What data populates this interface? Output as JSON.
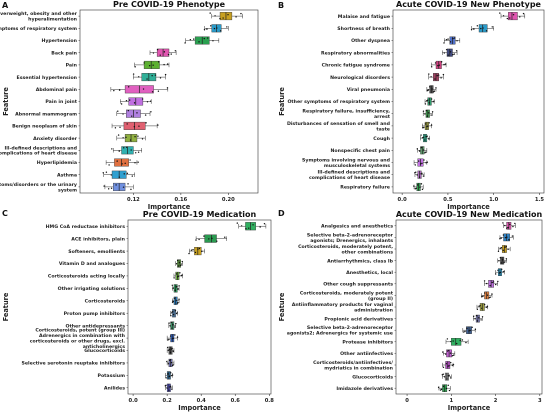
{
  "figure": {
    "ylabel": "Feature",
    "xlabel": "Importance"
  },
  "chart_data": [
    {
      "panel": "A",
      "type": "boxplot",
      "title": "Pre COVID-19 Phenotype",
      "xlabel": "Importance",
      "ylabel": "Feature",
      "xlim": [
        0.075,
        0.225
      ],
      "xticks": [
        0.12,
        0.16,
        0.2
      ],
      "tick_labels": [
        "0.12",
        "0.16",
        "0.20"
      ],
      "categories": [
        [
          "Overweight, obesity and other",
          "hyperalimentation"
        ],
        [
          "Other symptoms of respiratory system"
        ],
        [
          "Hypertension"
        ],
        [
          "Back pain"
        ],
        [
          "Pain"
        ],
        [
          "Essential hypertension"
        ],
        [
          "Abdominal pain"
        ],
        [
          "Pain in joint"
        ],
        [
          "Abnormal mammogram"
        ],
        [
          "Benign neoplasm of skin"
        ],
        [
          "Anxiety disorder"
        ],
        [
          "Ill-defined descriptions and",
          "complications of heart disease"
        ],
        [
          "Hyperlipidemia"
        ],
        [
          "Asthma"
        ],
        [
          "Other symptoms/disorders or the urinary",
          "system"
        ]
      ],
      "values": [
        0.198,
        0.19,
        0.178,
        0.145,
        0.135,
        0.133,
        0.125,
        0.122,
        0.12,
        0.121,
        0.118,
        0.115,
        0.11,
        0.108,
        0.108
      ],
      "iqr": [
        [
          0.193,
          0.203
        ],
        [
          0.186,
          0.194
        ],
        [
          0.172,
          0.184
        ],
        [
          0.14,
          0.15
        ],
        [
          0.129,
          0.142
        ],
        [
          0.127,
          0.139
        ],
        [
          0.113,
          0.137
        ],
        [
          0.116,
          0.128
        ],
        [
          0.114,
          0.126
        ],
        [
          0.112,
          0.13
        ],
        [
          0.113,
          0.123
        ],
        [
          0.11,
          0.12
        ],
        [
          0.104,
          0.116
        ],
        [
          0.102,
          0.114
        ],
        [
          0.103,
          0.113
        ]
      ],
      "whiskers": [
        [
          0.186,
          0.212
        ],
        [
          0.18,
          0.2
        ],
        [
          0.164,
          0.192
        ],
        [
          0.134,
          0.156
        ],
        [
          0.121,
          0.15
        ],
        [
          0.12,
          0.147
        ],
        [
          0.101,
          0.149
        ],
        [
          0.109,
          0.135
        ],
        [
          0.106,
          0.134
        ],
        [
          0.102,
          0.14
        ],
        [
          0.106,
          0.13
        ],
        [
          0.103,
          0.127
        ],
        [
          0.097,
          0.123
        ],
        [
          0.095,
          0.121
        ],
        [
          0.096,
          0.12
        ]
      ],
      "colors": [
        "#c8a020",
        "#2a9ac8",
        "#2aa050",
        "#e055b0",
        "#5cb030",
        "#30b098",
        "#e060c0",
        "#c070e0",
        "#b080e0",
        "#e06070",
        "#90b040",
        "#30b0b0",
        "#e07040",
        "#30a0d0",
        "#7090e0"
      ]
    },
    {
      "panel": "B",
      "type": "boxplot",
      "title": "Acute COVID-19 New Phenotype",
      "xlabel": "Importance",
      "ylabel": "Feature",
      "xlim": [
        -0.1,
        1.55
      ],
      "xticks": [
        0.0,
        0.5,
        1.0,
        1.5
      ],
      "tick_labels": [
        "0.0",
        "0.5",
        "1.0",
        "1.5"
      ],
      "categories": [
        [
          "Malaise and fatigue"
        ],
        [
          "Shortness of breath"
        ],
        [
          "Other dyspnea"
        ],
        [
          "Respiratory abnormalities"
        ],
        [
          "Chronic fatigue syndrome"
        ],
        [
          "Neurological disorders"
        ],
        [
          "Viral pneumonia"
        ],
        [
          "Other symptoms of respiratory system"
        ],
        [
          "Respiratory failure, insufficiency,",
          "arrest"
        ],
        [
          "Disturbances of sensation of smell and",
          "taste"
        ],
        [
          "Cough"
        ],
        [
          "Nonspecific chest pain"
        ],
        [
          "Symptoms involving nervous and",
          "musculoskeletal systems"
        ],
        [
          "Ill-defined descriptions and",
          "complications of heart disease"
        ],
        [
          "Respiratory failure"
        ]
      ],
      "values": [
        1.2,
        0.88,
        0.55,
        0.52,
        0.4,
        0.37,
        0.32,
        0.3,
        0.28,
        0.27,
        0.25,
        0.22,
        0.2,
        0.19,
        0.18
      ],
      "iqr": [
        [
          1.16,
          1.26
        ],
        [
          0.84,
          0.93
        ],
        [
          0.52,
          0.58
        ],
        [
          0.49,
          0.55
        ],
        [
          0.37,
          0.43
        ],
        [
          0.34,
          0.4
        ],
        [
          0.3,
          0.34
        ],
        [
          0.28,
          0.32
        ],
        [
          0.26,
          0.3
        ],
        [
          0.25,
          0.29
        ],
        [
          0.23,
          0.27
        ],
        [
          0.2,
          0.24
        ],
        [
          0.17,
          0.23
        ],
        [
          0.17,
          0.21
        ],
        [
          0.16,
          0.2
        ]
      ],
      "whiskers": [
        [
          1.08,
          1.34
        ],
        [
          0.76,
          1.0
        ],
        [
          0.46,
          0.63
        ],
        [
          0.44,
          0.6
        ],
        [
          0.32,
          0.48
        ],
        [
          0.29,
          0.45
        ],
        [
          0.27,
          0.37
        ],
        [
          0.25,
          0.35
        ],
        [
          0.23,
          0.33
        ],
        [
          0.22,
          0.32
        ],
        [
          0.2,
          0.3
        ],
        [
          0.17,
          0.27
        ],
        [
          0.13,
          0.27
        ],
        [
          0.14,
          0.24
        ],
        [
          0.13,
          0.23
        ]
      ],
      "colors": [
        "#e055b0",
        "#2a9ac8",
        "#5070c8",
        "#404a80",
        "#d04080",
        "#a04060",
        "#505050",
        "#30a070",
        "#40a050",
        "#a0a040",
        "#30b090",
        "#60a070",
        "#c070e0",
        "#b070c0",
        "#30a050"
      ]
    },
    {
      "panel": "C",
      "type": "boxplot",
      "title": "Pre COVID-19 Medication",
      "xlabel": "Importance",
      "ylabel": "Feature",
      "xlim": [
        -0.03,
        0.81
      ],
      "xticks": [
        0.0,
        0.2,
        0.4,
        0.6,
        0.8
      ],
      "tick_labels": [
        "0.0",
        "0.2",
        "0.4",
        "0.6",
        "0.8"
      ],
      "categories": [
        [
          "HMG CoA reductase inhibitors"
        ],
        [
          "ACE inhibitors, plain"
        ],
        [
          "Softeners, emollients"
        ],
        [
          "Vitamin D and analogues"
        ],
        [
          "Corticosteroids acting locally"
        ],
        [
          "Other irrigating solutions"
        ],
        [
          "Corticosteroids"
        ],
        [
          "Proton pump inhibitors"
        ],
        [
          "Other antidepressants"
        ],
        [
          "Corticosteroids, potent (group III)",
          "Adrenergics in combination with",
          "corticosteroids or other drugs, excl.",
          "anticholinergics"
        ],
        [
          "Glucocorticoids"
        ],
        [
          "Selective serotonin reuptake inhibitors"
        ],
        [
          "Potassium"
        ],
        [
          "Anilides"
        ]
      ],
      "values": [
        0.69,
        0.46,
        0.38,
        0.27,
        0.26,
        0.25,
        0.25,
        0.24,
        0.23,
        0.23,
        0.22,
        0.22,
        0.21,
        0.21
      ],
      "iqr": [
        [
          0.66,
          0.72
        ],
        [
          0.42,
          0.49
        ],
        [
          0.36,
          0.4
        ],
        [
          0.26,
          0.28
        ],
        [
          0.25,
          0.27
        ],
        [
          0.24,
          0.26
        ],
        [
          0.24,
          0.26
        ],
        [
          0.23,
          0.25
        ],
        [
          0.22,
          0.24
        ],
        [
          0.22,
          0.24
        ],
        [
          0.21,
          0.23
        ],
        [
          0.21,
          0.23
        ],
        [
          0.2,
          0.22
        ],
        [
          0.2,
          0.22
        ]
      ],
      "whiskers": [
        [
          0.62,
          0.78
        ],
        [
          0.37,
          0.55
        ],
        [
          0.33,
          0.42
        ],
        [
          0.25,
          0.29
        ],
        [
          0.24,
          0.29
        ],
        [
          0.23,
          0.27
        ],
        [
          0.23,
          0.27
        ],
        [
          0.22,
          0.26
        ],
        [
          0.21,
          0.25
        ],
        [
          0.2,
          0.26
        ],
        [
          0.2,
          0.24
        ],
        [
          0.2,
          0.24
        ],
        [
          0.19,
          0.23
        ],
        [
          0.19,
          0.23
        ]
      ],
      "colors": [
        "#30b060",
        "#2a9a50",
        "#c8a020",
        "#60a040",
        "#70b040",
        "#30a060",
        "#3080c0",
        "#6090c0",
        "#40a070",
        "#3060c0",
        "#505050",
        "#7070b0",
        "#3070a0",
        "#5050c0"
      ]
    },
    {
      "panel": "D",
      "type": "boxplot",
      "title": "Acute COVID-19 New Medication",
      "xlabel": "Importance",
      "ylabel": "Feature",
      "xlim": [
        -0.25,
        3.05
      ],
      "xticks": [
        0,
        1,
        2,
        3
      ],
      "tick_labels": [
        "0",
        "1",
        "2",
        "3"
      ],
      "categories": [
        [
          "Analgesics and anesthetics"
        ],
        [
          "Selective beta-2-adrenoreceptor",
          "agonists; Drenergics, inhalants"
        ],
        [
          "Corticosteroids, moderately potent,",
          "other combinations"
        ],
        [
          "Antiarrhythmics, class Ib"
        ],
        [
          "Anesthetics, local"
        ],
        [
          "Other cough suppressants"
        ],
        [
          "Corticosteroids, moderately potent",
          "(group II)"
        ],
        [
          "Antiinflammatory products for vaginal",
          "administration"
        ],
        [
          "Propionic acid derivatives"
        ],
        [
          "Selective beta-2-adrenoreceptor",
          "agonists2; Adrenergics for systemic use"
        ],
        [
          "Protease inhibitors"
        ],
        [
          "Other antiinfectives"
        ],
        [
          "Corticosteroids/antiinfectives/",
          "mydriatics in combination"
        ],
        [
          "Glucocorticoids"
        ],
        [
          "Imidazole derivatives"
        ]
      ],
      "values": [
        2.3,
        2.25,
        2.2,
        2.15,
        2.1,
        1.9,
        1.8,
        1.7,
        1.6,
        1.4,
        1.1,
        0.95,
        0.92,
        0.9,
        0.85
      ],
      "iqr": [
        [
          2.25,
          2.35
        ],
        [
          2.18,
          2.32
        ],
        [
          2.15,
          2.25
        ],
        [
          2.11,
          2.19
        ],
        [
          2.06,
          2.14
        ],
        [
          1.84,
          1.96
        ],
        [
          1.75,
          1.85
        ],
        [
          1.65,
          1.75
        ],
        [
          1.56,
          1.64
        ],
        [
          1.34,
          1.46
        ],
        [
          1.0,
          1.22
        ],
        [
          0.89,
          1.01
        ],
        [
          0.87,
          0.97
        ],
        [
          0.86,
          0.94
        ],
        [
          0.8,
          0.9
        ]
      ],
      "whiskers": [
        [
          2.18,
          2.45
        ],
        [
          2.1,
          2.4
        ],
        [
          2.07,
          2.33
        ],
        [
          2.05,
          2.25
        ],
        [
          2.0,
          2.2
        ],
        [
          1.75,
          2.05
        ],
        [
          1.68,
          1.92
        ],
        [
          1.58,
          1.82
        ],
        [
          1.5,
          1.7
        ],
        [
          1.26,
          1.54
        ],
        [
          0.88,
          1.38
        ],
        [
          0.82,
          1.08
        ],
        [
          0.8,
          1.04
        ],
        [
          0.8,
          1.0
        ],
        [
          0.72,
          0.98
        ]
      ],
      "colors": [
        "#e055b0",
        "#3080c0",
        "#c8a020",
        "#505050",
        "#2a9ac8",
        "#c070e0",
        "#e08040",
        "#a0a040",
        "#8080c0",
        "#406090",
        "#30b060",
        "#c060d0",
        "#b050c0",
        "#909090",
        "#30a050"
      ]
    }
  ]
}
